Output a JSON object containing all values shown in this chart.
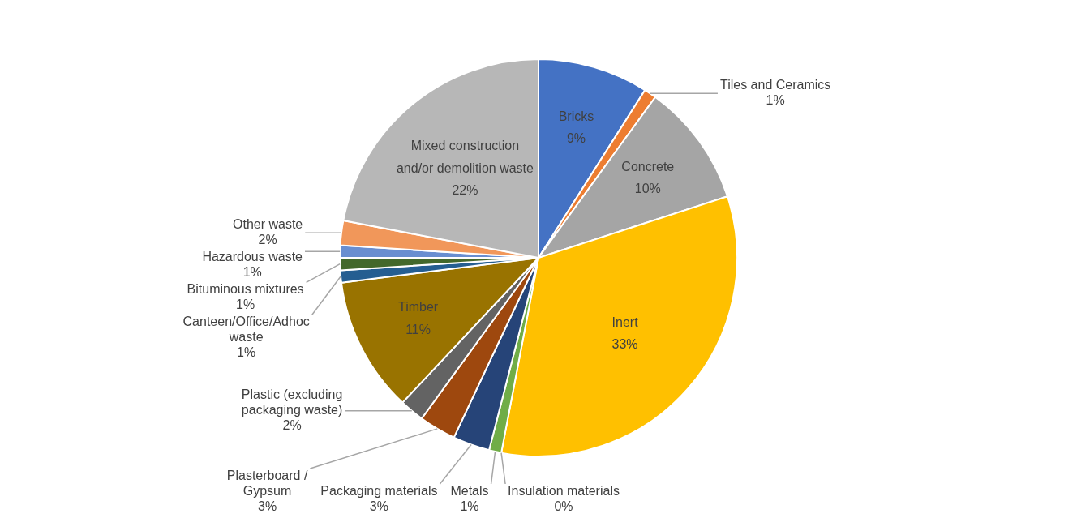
{
  "chart_data": {
    "type": "pie",
    "categories": [
      "Bricks",
      "Tiles and Ceramics",
      "Concrete",
      "Inert",
      "Insulation materials",
      "Metals",
      "Packaging materials",
      "Plasterboard / Gypsum",
      "Plastic (excluding packaging waste)",
      "Timber",
      "Canteen/Office/Adhoc waste",
      "Bituminous mixtures",
      "Hazardous waste",
      "Other waste",
      "Mixed construction and/or demolition waste"
    ],
    "values": [
      9,
      1,
      10,
      33,
      0,
      1,
      3,
      3,
      2,
      11,
      1,
      1,
      1,
      2,
      22
    ],
    "colors": [
      "#4472c4",
      "#ed7d31",
      "#a5a5a5",
      "#ffc000",
      "#5b9bd5",
      "#70ad47",
      "#264478",
      "#9e480e",
      "#636363",
      "#997300",
      "#255e91",
      "#43682b",
      "#698ed0",
      "#f1975a",
      "#b7b7b7"
    ],
    "value_labels": [
      "9%",
      "1%",
      "10%",
      "33%",
      "0%",
      "1%",
      "3%",
      "3%",
      "2%",
      "11%",
      "1%",
      "1%",
      "1%",
      "2%",
      "22%"
    ]
  }
}
